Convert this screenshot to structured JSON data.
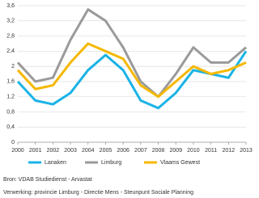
{
  "chart_data": {
    "type": "line",
    "categories": [
      "2000",
      "2001",
      "2002",
      "2003",
      "2004",
      "2005",
      "2006",
      "2007",
      "2008",
      "2009",
      "2010",
      "2011",
      "2012",
      "2013"
    ],
    "series": [
      {
        "name": "Lanaken",
        "color": "#1ab3e6",
        "values": [
          1.6,
          1.1,
          1.0,
          1.3,
          1.9,
          2.3,
          1.9,
          1.1,
          0.9,
          1.3,
          1.9,
          1.8,
          1.7,
          2.4
        ]
      },
      {
        "name": "Limburg",
        "color": "#9a9a9a",
        "values": [
          2.1,
          1.6,
          1.7,
          2.7,
          3.5,
          3.2,
          2.5,
          1.6,
          1.2,
          1.8,
          2.5,
          2.1,
          2.1,
          2.5
        ]
      },
      {
        "name": "Vlaams Gewest",
        "color": "#f5b800",
        "values": [
          1.9,
          1.4,
          1.5,
          2.1,
          2.6,
          2.4,
          2.2,
          1.5,
          1.2,
          1.6,
          2.0,
          1.8,
          1.9,
          2.1
        ]
      }
    ],
    "ylim": [
      0,
      3.6
    ],
    "yticks": [
      0,
      {
        "value": 0.4,
        "label": "0,4"
      },
      {
        "value": 0.8,
        "label": "0,8"
      },
      {
        "value": 1.2,
        "label": "1,2"
      },
      {
        "value": 1.6,
        "label": "1,6"
      },
      2,
      {
        "value": 2.4,
        "label": "2,4"
      },
      {
        "value": 2.8,
        "label": "2,8"
      },
      {
        "value": 3.2,
        "label": "3,2"
      },
      {
        "value": 3.6,
        "label": "3,6"
      }
    ],
    "grid": true,
    "legend": "bottom",
    "source": "Bron: VDAB Studiedienst - Arvastat",
    "note": "Verwerking: provincie Limburg - Directie Mens - Steunpunt Sociale Planning"
  }
}
